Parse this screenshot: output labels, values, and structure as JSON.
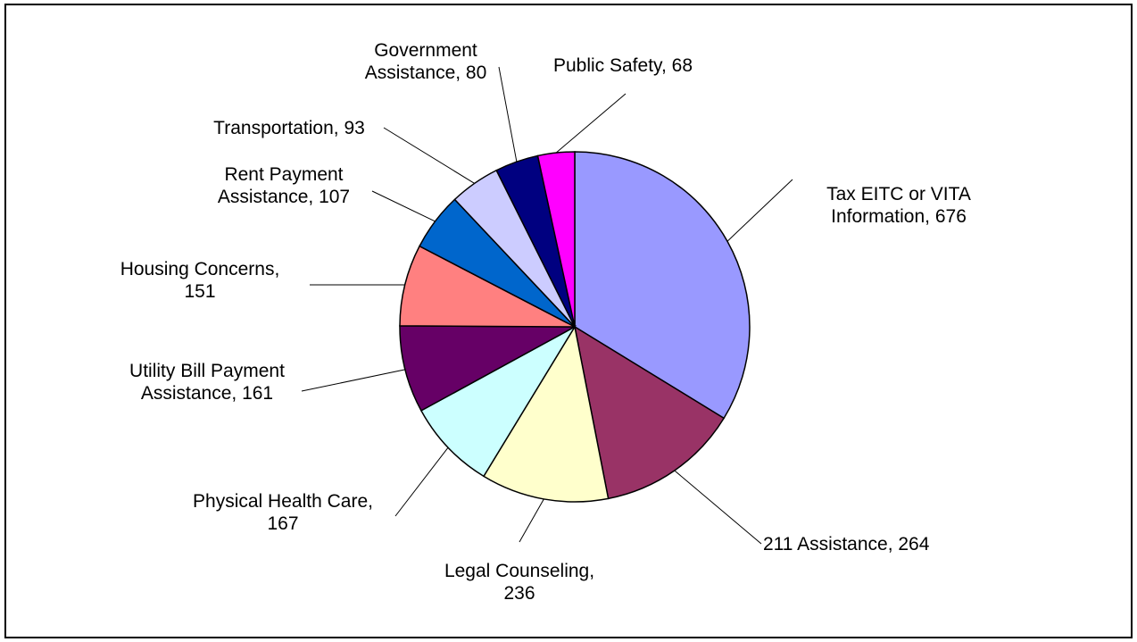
{
  "chart_data": {
    "type": "pie",
    "title": "",
    "start_angle_deg": 0,
    "direction": "clockwise",
    "legend": "none",
    "slices": [
      {
        "label_lines": [
          "Tax EITC or VITA",
          "Information, 676"
        ],
        "category": "Tax EITC or VITA Information",
        "value": 676,
        "color": "#9999ff"
      },
      {
        "label_lines": [
          "211 Assistance, 264"
        ],
        "category": "211 Assistance",
        "value": 264,
        "color": "#993366"
      },
      {
        "label_lines": [
          "Legal Counseling,",
          "236"
        ],
        "category": "Legal Counseling",
        "value": 236,
        "color": "#ffffcc"
      },
      {
        "label_lines": [
          "Physical Health Care,",
          "167"
        ],
        "category": "Physical Health Care",
        "value": 167,
        "color": "#ccffff"
      },
      {
        "label_lines": [
          "Utility Bill Payment",
          "Assistance, 161"
        ],
        "category": "Utility Bill Payment Assistance",
        "value": 161,
        "color": "#660066"
      },
      {
        "label_lines": [
          "Housing Concerns,",
          "151"
        ],
        "category": "Housing Concerns",
        "value": 151,
        "color": "#ff8080"
      },
      {
        "label_lines": [
          "Rent Payment",
          "Assistance, 107"
        ],
        "category": "Rent Payment Assistance",
        "value": 107,
        "color": "#0066cc"
      },
      {
        "label_lines": [
          "Transportation, 93"
        ],
        "category": "Transportation",
        "value": 93,
        "color": "#ccccff"
      },
      {
        "label_lines": [
          "Government",
          "Assistance, 80"
        ],
        "category": "Government Assistance",
        "value": 80,
        "color": "#000080"
      },
      {
        "label_lines": [
          "Public Safety, 68"
        ],
        "category": "Public Safety",
        "value": 68,
        "color": "#ff00ff"
      }
    ]
  }
}
